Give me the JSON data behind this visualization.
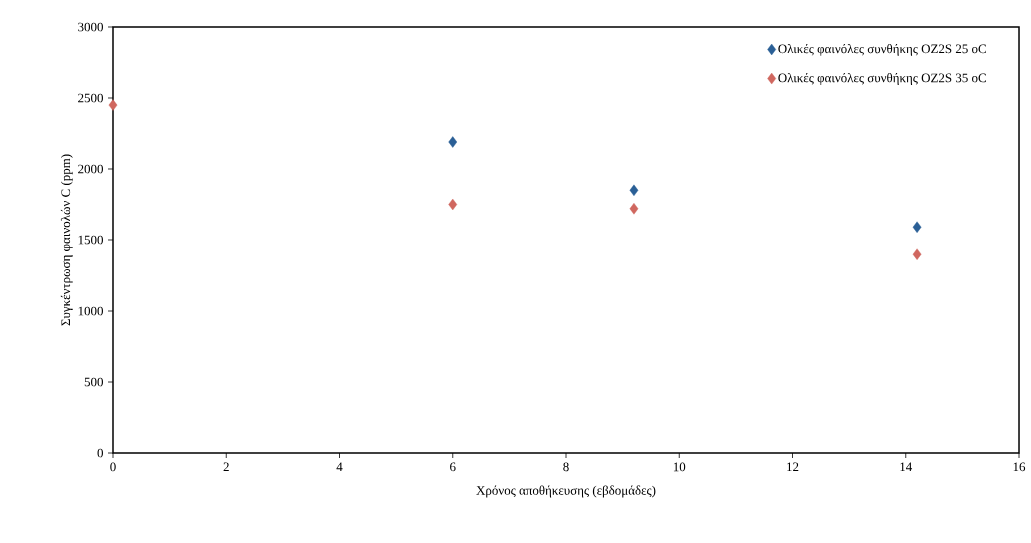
{
  "chart_data": {
    "type": "scatter",
    "xlabel": "Χρόνος αποθήκευσης (εβδομάδες)",
    "ylabel": "Συγκέντρωση φαινολών C (ppm)",
    "x": [
      0,
      6,
      9.2,
      14.2
    ],
    "series": [
      {
        "name": "Ολικές φαινόλες συνθήκης OZ2S 25 oC",
        "color": "#2a5f96",
        "values": [
          null,
          2190,
          1850,
          1590
        ]
      },
      {
        "name": "Ολικές φαινόλες συνθήκης OZ2S 35 oC",
        "color": "#d0675f",
        "values": [
          2450,
          1750,
          1720,
          1400
        ]
      }
    ],
    "xlim": [
      0,
      16
    ],
    "xticks": [
      0,
      2,
      4,
      6,
      8,
      10,
      12,
      14,
      16
    ],
    "ylim": [
      0,
      3000
    ],
    "yticks": [
      0,
      500,
      1000,
      1500,
      2000,
      2500,
      3000
    ],
    "marker": "diamond",
    "legend": "top right",
    "grid": false
  }
}
